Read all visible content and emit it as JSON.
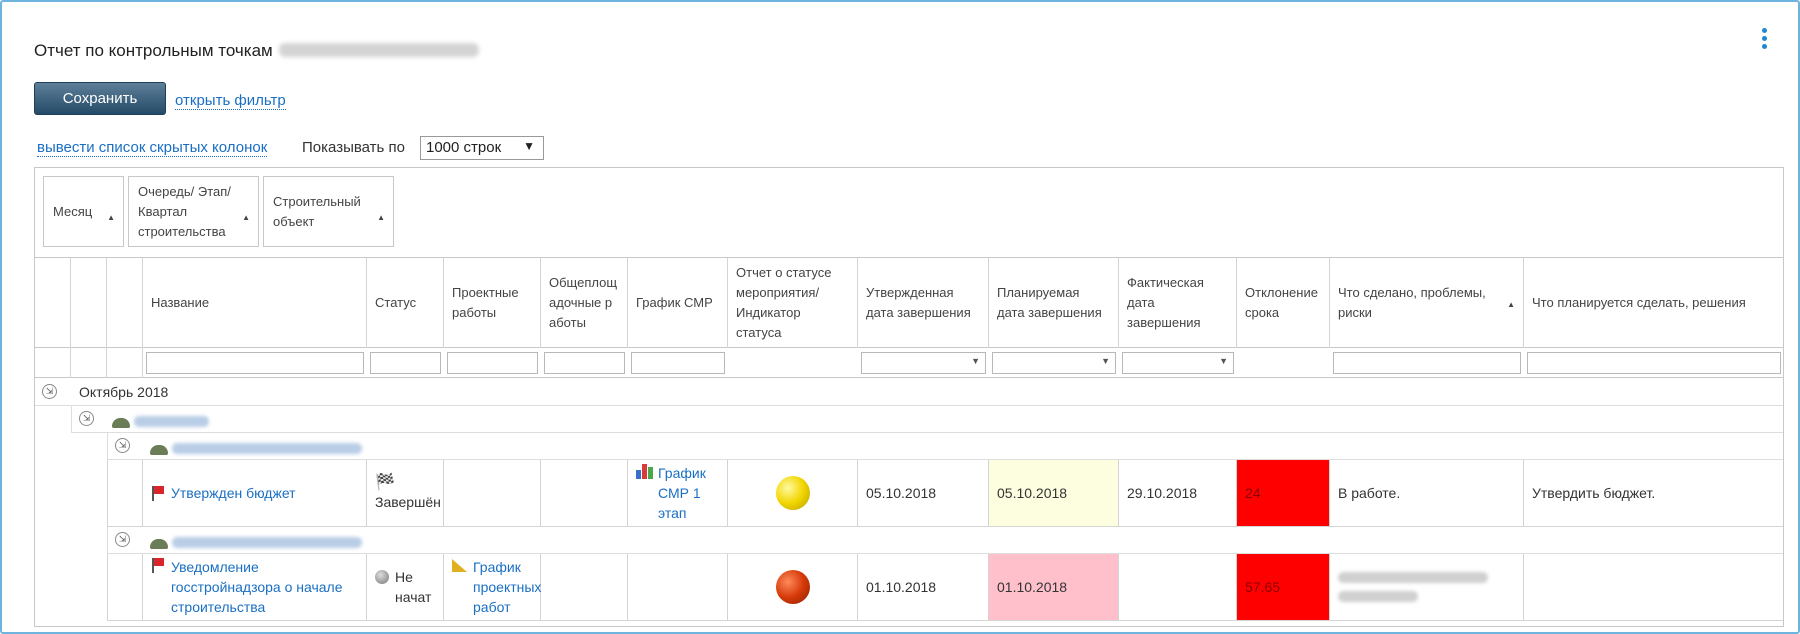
{
  "header": {
    "title": "Отчет по контрольным точкам",
    "project": ""
  },
  "toolbar": {
    "save_label": "Сохранить",
    "open_filter_label": "открыть фильтр",
    "hidden_columns_label": "вывести список скрытых колонок",
    "show_label": "Показывать по",
    "rows_per_page": "1000 строк"
  },
  "grouping": [
    "Месяц",
    "Очередь/ Этап/Квартал строительства",
    "Строительный объект"
  ],
  "columns": {
    "name": "Название",
    "status": "Статус",
    "project_works": "Проектные работы",
    "general_works": "Общеплощадочные работы",
    "smr_schedule": "График СМР",
    "event_report": "Отчет о статусе мероприятия/ Индикатор статуса",
    "approved_date": "Утвержденная дата завершения",
    "planned_date": "Планируемая дата завершения",
    "actual_date": "Фактическая дата завершения",
    "deviation": "Отклонение срока",
    "done": "Что сделано, проблемы, риски",
    "plans": "Что планируется сделать, решения"
  },
  "groups": {
    "month": "Октябрь 2018",
    "queue": "",
    "building1": "",
    "building2": ""
  },
  "rows": [
    {
      "name": "Утвержден бюджет",
      "status": "Завершён",
      "project_works": "",
      "general_works": "",
      "smr_schedule": "График СМР 1 этап",
      "indicator_color": "#f2d600",
      "approved_date": "05.10.2018",
      "planned_date": "05.10.2018",
      "planned_bg": "#fdfde0",
      "actual_date": "29.10.2018",
      "deviation": "24",
      "done": "В работе.",
      "plans": "Утвердить бюджет."
    },
    {
      "name": "Уведомление госстройнадзора о начале строительства",
      "status": "Не начат",
      "project_works": "График проектных работ",
      "general_works": "",
      "smr_schedule": "",
      "indicator_color": "#d63a0a",
      "approved_date": "01.10.2018",
      "planned_date": "01.10.2018",
      "planned_bg": "#ffc0cb",
      "actual_date": "",
      "deviation": "57.65",
      "done": "",
      "plans": ""
    }
  ],
  "colors": {
    "deviation_bg": "#ff0000",
    "link": "#1a6fc4",
    "border": "#6fb3df"
  }
}
